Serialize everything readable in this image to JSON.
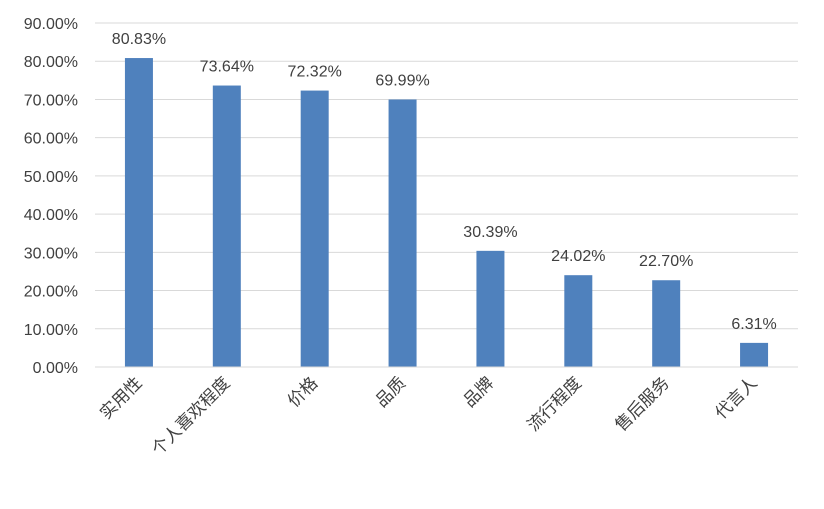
{
  "chart_data": {
    "type": "bar",
    "categories": [
      "实用性",
      "个人喜欢程度",
      "价格",
      "品质",
      "品牌",
      "流行程度",
      "售后服务",
      "代言人"
    ],
    "values": [
      80.83,
      73.64,
      72.32,
      69.99,
      30.39,
      24.02,
      22.7,
      6.31
    ],
    "data_labels": [
      "80.83%",
      "73.64%",
      "72.32%",
      "69.99%",
      "30.39%",
      "24.02%",
      "22.70%",
      "6.31%"
    ],
    "y_ticks": [
      "0.00%",
      "10.00%",
      "20.00%",
      "30.00%",
      "40.00%",
      "50.00%",
      "60.00%",
      "70.00%",
      "80.00%",
      "90.00%"
    ],
    "ylim": [
      0,
      90
    ],
    "grid": true,
    "bar_color": "#4f81bd",
    "grid_color": "#d9d9d9",
    "text_color": "#404040"
  }
}
